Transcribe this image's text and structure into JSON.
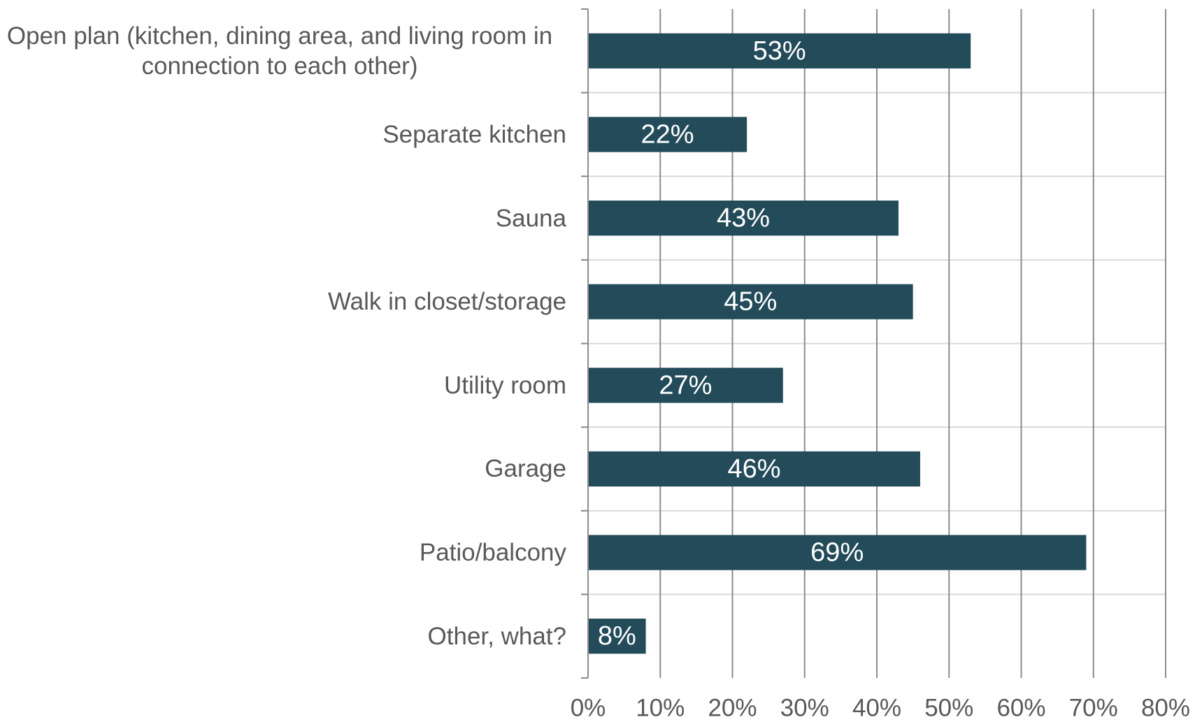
{
  "chart_data": {
    "type": "bar",
    "orientation": "horizontal",
    "categories": [
      "Open plan (kitchen, dining area, and living room in connection to each other)",
      "Separate kitchen",
      "Sauna",
      "Walk in closet/storage",
      "Utility room",
      "Garage",
      "Patio/balcony",
      "Other, what?"
    ],
    "values": [
      53,
      22,
      43,
      45,
      27,
      46,
      69,
      8
    ],
    "value_labels": [
      "53%",
      "22%",
      "43%",
      "45%",
      "27%",
      "46%",
      "69%",
      "8%"
    ],
    "color": "#234b5a",
    "xlim": [
      0,
      80
    ],
    "xticks": [
      {
        "value": 0,
        "label": "0%"
      },
      {
        "value": 10,
        "label": "10%"
      },
      {
        "value": 20,
        "label": "20%"
      },
      {
        "value": 30,
        "label": "30%"
      },
      {
        "value": 40,
        "label": "40%"
      },
      {
        "value": 50,
        "label": "50%"
      },
      {
        "value": 60,
        "label": "60%"
      },
      {
        "value": 70,
        "label": "70%"
      },
      {
        "value": 80,
        "label": "80%"
      }
    ],
    "grid": true
  }
}
